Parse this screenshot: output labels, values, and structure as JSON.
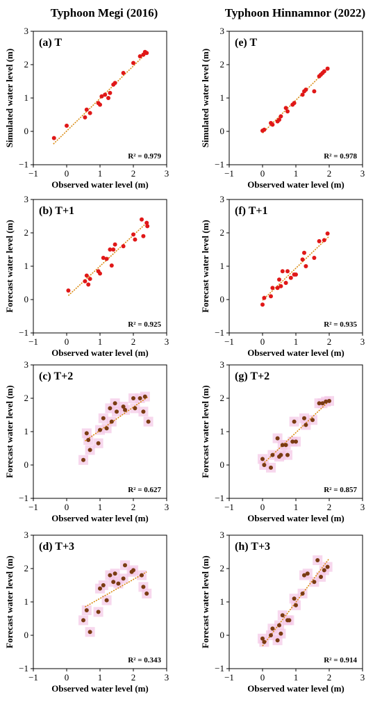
{
  "figure": {
    "col_titles": [
      "Typhoon Megi (2016)",
      "Typhoon Hinnamnor (2022)"
    ],
    "colors": {
      "red_point": "#e01818",
      "brown_point": "#7a3b12",
      "fit_line": "#d98a10",
      "halo": "#f4c6e6"
    }
  },
  "chart_data": [
    {
      "type": "scatter",
      "panel_label": "(a) T",
      "r2_label": "R² = 0.979",
      "xlabel": "Observed water level (m)",
      "ylabel": "Simulated water level (m)",
      "xlim": [
        -1,
        3
      ],
      "ylim": [
        -1,
        3
      ],
      "xticks": [
        -1,
        0,
        1,
        2,
        3
      ],
      "yticks": [
        -1,
        0,
        1,
        2,
        3
      ],
      "point_style": "red",
      "trendline": [
        [
          -0.4,
          -0.38
        ],
        [
          2.4,
          2.35
        ]
      ],
      "points": [
        [
          -0.38,
          -0.2
        ],
        [
          0.0,
          0.17
        ],
        [
          0.55,
          0.42
        ],
        [
          0.6,
          0.65
        ],
        [
          0.7,
          0.55
        ],
        [
          0.95,
          0.85
        ],
        [
          1.0,
          0.8
        ],
        [
          1.05,
          1.05
        ],
        [
          1.15,
          1.1
        ],
        [
          1.25,
          1.0
        ],
        [
          1.3,
          1.15
        ],
        [
          1.4,
          1.4
        ],
        [
          1.45,
          1.45
        ],
        [
          1.7,
          1.75
        ],
        [
          2.0,
          2.05
        ],
        [
          2.2,
          2.25
        ],
        [
          2.3,
          2.3
        ],
        [
          2.35,
          2.38
        ],
        [
          2.4,
          2.35
        ]
      ]
    },
    {
      "type": "scatter",
      "panel_label": "(e) T",
      "r2_label": "R² = 0.978",
      "xlabel": "Observed water level (m)",
      "ylabel": "Simulated water level (m)",
      "xlim": [
        -1,
        3
      ],
      "ylim": [
        -1,
        3
      ],
      "xticks": [
        -1,
        0,
        1,
        2,
        3
      ],
      "yticks": [
        -1,
        0,
        1,
        2,
        3
      ],
      "point_style": "red",
      "trendline": [
        [
          0.0,
          -0.05
        ],
        [
          2.0,
          1.92
        ]
      ],
      "points": [
        [
          0.0,
          0.02
        ],
        [
          0.05,
          0.05
        ],
        [
          0.25,
          0.25
        ],
        [
          0.3,
          0.2
        ],
        [
          0.45,
          0.3
        ],
        [
          0.5,
          0.35
        ],
        [
          0.55,
          0.45
        ],
        [
          0.7,
          0.7
        ],
        [
          0.75,
          0.6
        ],
        [
          0.9,
          0.8
        ],
        [
          0.95,
          0.85
        ],
        [
          1.2,
          1.1
        ],
        [
          1.25,
          1.2
        ],
        [
          1.3,
          1.25
        ],
        [
          1.55,
          1.2
        ],
        [
          1.7,
          1.65
        ],
        [
          1.75,
          1.7
        ],
        [
          1.8,
          1.75
        ],
        [
          1.85,
          1.8
        ],
        [
          1.95,
          1.88
        ]
      ]
    },
    {
      "type": "scatter",
      "panel_label": "(b) T+1",
      "r2_label": "R² = 0.925",
      "xlabel": "Observed water level (m)",
      "ylabel": "Forecast water level (m)",
      "xlim": [
        -1,
        3
      ],
      "ylim": [
        -1,
        3
      ],
      "xticks": [
        -1,
        0,
        1,
        2,
        3
      ],
      "yticks": [
        -1,
        0,
        1,
        2,
        3
      ],
      "point_style": "red",
      "trendline": [
        [
          0.05,
          0.12
        ],
        [
          2.4,
          2.3
        ]
      ],
      "points": [
        [
          0.05,
          0.27
        ],
        [
          0.55,
          0.55
        ],
        [
          0.6,
          0.72
        ],
        [
          0.65,
          0.45
        ],
        [
          0.7,
          0.62
        ],
        [
          0.95,
          0.85
        ],
        [
          1.0,
          0.78
        ],
        [
          1.1,
          1.25
        ],
        [
          1.2,
          1.22
        ],
        [
          1.3,
          1.5
        ],
        [
          1.35,
          1.02
        ],
        [
          1.4,
          1.5
        ],
        [
          1.45,
          1.65
        ],
        [
          1.7,
          1.6
        ],
        [
          2.0,
          1.95
        ],
        [
          2.05,
          1.8
        ],
        [
          2.25,
          2.4
        ],
        [
          2.3,
          1.9
        ],
        [
          2.4,
          2.3
        ],
        [
          2.42,
          2.2
        ]
      ]
    },
    {
      "type": "scatter",
      "panel_label": "(f) T+1",
      "r2_label": "R² = 0.935",
      "xlabel": "Observed water level (m)",
      "ylabel": "Forecast water level (m)",
      "xlim": [
        -1,
        3
      ],
      "ylim": [
        -1,
        3
      ],
      "xticks": [
        -1,
        0,
        1,
        2,
        3
      ],
      "yticks": [
        -1,
        0,
        1,
        2,
        3
      ],
      "point_style": "red",
      "trendline": [
        [
          0.0,
          -0.02
        ],
        [
          2.0,
          1.9
        ]
      ],
      "points": [
        [
          0.0,
          -0.15
        ],
        [
          0.05,
          0.05
        ],
        [
          0.25,
          0.1
        ],
        [
          0.3,
          0.35
        ],
        [
          0.45,
          0.35
        ],
        [
          0.5,
          0.6
        ],
        [
          0.55,
          0.4
        ],
        [
          0.6,
          0.85
        ],
        [
          0.7,
          0.5
        ],
        [
          0.75,
          0.85
        ],
        [
          0.85,
          0.65
        ],
        [
          0.95,
          0.75
        ],
        [
          1.0,
          0.75
        ],
        [
          1.2,
          1.2
        ],
        [
          1.25,
          1.4
        ],
        [
          1.3,
          1.0
        ],
        [
          1.55,
          1.25
        ],
        [
          1.7,
          1.75
        ],
        [
          1.85,
          1.78
        ],
        [
          1.95,
          1.98
        ]
      ]
    },
    {
      "type": "scatter",
      "panel_label": "(c) T+2",
      "r2_label": "R² = 0.627",
      "xlabel": "Observed water level (m)",
      "ylabel": "Forecast water level (m)",
      "xlim": [
        -1,
        3
      ],
      "ylim": [
        -1,
        3
      ],
      "xticks": [
        -1,
        0,
        1,
        2,
        3
      ],
      "yticks": [
        -1,
        0,
        1,
        2,
        3
      ],
      "point_style": "brown_halo",
      "trendline": [
        [
          0.55,
          0.72
        ],
        [
          2.45,
          2.05
        ]
      ],
      "points": [
        [
          0.5,
          0.15
        ],
        [
          0.6,
          0.95
        ],
        [
          0.65,
          0.75
        ],
        [
          0.7,
          0.45
        ],
        [
          0.95,
          0.65
        ],
        [
          1.0,
          1.05
        ],
        [
          1.1,
          1.4
        ],
        [
          1.2,
          1.1
        ],
        [
          1.3,
          1.7
        ],
        [
          1.35,
          1.3
        ],
        [
          1.45,
          1.85
        ],
        [
          1.5,
          1.6
        ],
        [
          1.7,
          1.75
        ],
        [
          1.75,
          1.65
        ],
        [
          2.0,
          2.0
        ],
        [
          2.05,
          1.7
        ],
        [
          2.2,
          2.0
        ],
        [
          2.3,
          1.6
        ],
        [
          2.35,
          2.05
        ],
        [
          2.45,
          1.3
        ]
      ]
    },
    {
      "type": "scatter",
      "panel_label": "(g) T+2",
      "r2_label": "R² = 0.857",
      "xlabel": "Observed water level (m)",
      "ylabel": "Forecast water level (m)",
      "xlim": [
        -1,
        3
      ],
      "ylim": [
        -1,
        3
      ],
      "xticks": [
        -1,
        0,
        1,
        2,
        3
      ],
      "yticks": [
        -1,
        0,
        1,
        2,
        3
      ],
      "point_style": "brown_halo",
      "trendline": [
        [
          0.0,
          0.02
        ],
        [
          2.0,
          1.92
        ]
      ],
      "points": [
        [
          0.0,
          0.18
        ],
        [
          0.05,
          0.0
        ],
        [
          0.25,
          -0.08
        ],
        [
          0.3,
          0.3
        ],
        [
          0.45,
          0.8
        ],
        [
          0.5,
          0.25
        ],
        [
          0.55,
          0.3
        ],
        [
          0.6,
          0.6
        ],
        [
          0.7,
          0.6
        ],
        [
          0.75,
          0.3
        ],
        [
          0.9,
          0.7
        ],
        [
          0.95,
          1.3
        ],
        [
          1.0,
          0.7
        ],
        [
          1.25,
          1.4
        ],
        [
          1.3,
          1.2
        ],
        [
          1.5,
          1.35
        ],
        [
          1.7,
          1.85
        ],
        [
          1.8,
          1.85
        ],
        [
          1.9,
          1.9
        ],
        [
          2.0,
          1.92
        ]
      ]
    },
    {
      "type": "scatter",
      "panel_label": "(d) T+3",
      "r2_label": "R² = 0.343",
      "xlabel": "Observed water level (m)",
      "ylabel": "Forecast water level (m)",
      "xlim": [
        -1,
        3
      ],
      "ylim": [
        -1,
        3
      ],
      "xticks": [
        -1,
        0,
        1,
        2,
        3
      ],
      "yticks": [
        -1,
        0,
        1,
        2,
        3
      ],
      "point_style": "brown_halo",
      "trendline": [
        [
          0.55,
          0.85
        ],
        [
          2.4,
          1.9
        ]
      ],
      "points": [
        [
          0.5,
          0.45
        ],
        [
          0.6,
          0.75
        ],
        [
          0.7,
          0.1
        ],
        [
          0.95,
          0.7
        ],
        [
          1.0,
          1.4
        ],
        [
          1.1,
          1.5
        ],
        [
          1.2,
          1.05
        ],
        [
          1.3,
          1.8
        ],
        [
          1.4,
          1.6
        ],
        [
          1.45,
          1.85
        ],
        [
          1.55,
          1.55
        ],
        [
          1.7,
          1.7
        ],
        [
          1.75,
          2.1
        ],
        [
          1.95,
          1.9
        ],
        [
          2.0,
          1.95
        ],
        [
          2.25,
          1.8
        ],
        [
          2.3,
          1.45
        ],
        [
          2.4,
          1.25
        ]
      ]
    },
    {
      "type": "scatter",
      "panel_label": "(h) T+3",
      "r2_label": "R² = 0.914",
      "xlabel": "Observed water level (m)",
      "ylabel": "Forecast water level (m)",
      "xlim": [
        -1,
        3
      ],
      "ylim": [
        -1,
        3
      ],
      "xticks": [
        -1,
        0,
        1,
        2,
        3
      ],
      "yticks": [
        -1,
        0,
        1,
        2,
        3
      ],
      "point_style": "brown_halo",
      "trendline": [
        [
          0.0,
          -0.32
        ],
        [
          2.0,
          2.3
        ]
      ],
      "points": [
        [
          0.0,
          -0.1
        ],
        [
          0.05,
          -0.2
        ],
        [
          0.25,
          0.0
        ],
        [
          0.3,
          0.2
        ],
        [
          0.45,
          -0.15
        ],
        [
          0.5,
          0.3
        ],
        [
          0.55,
          0.05
        ],
        [
          0.6,
          0.6
        ],
        [
          0.75,
          0.45
        ],
        [
          0.8,
          0.45
        ],
        [
          0.95,
          1.1
        ],
        [
          1.0,
          0.9
        ],
        [
          1.2,
          1.25
        ],
        [
          1.25,
          1.8
        ],
        [
          1.35,
          1.85
        ],
        [
          1.55,
          1.6
        ],
        [
          1.65,
          2.25
        ],
        [
          1.75,
          1.75
        ],
        [
          1.85,
          1.95
        ],
        [
          1.95,
          2.05
        ]
      ]
    }
  ]
}
